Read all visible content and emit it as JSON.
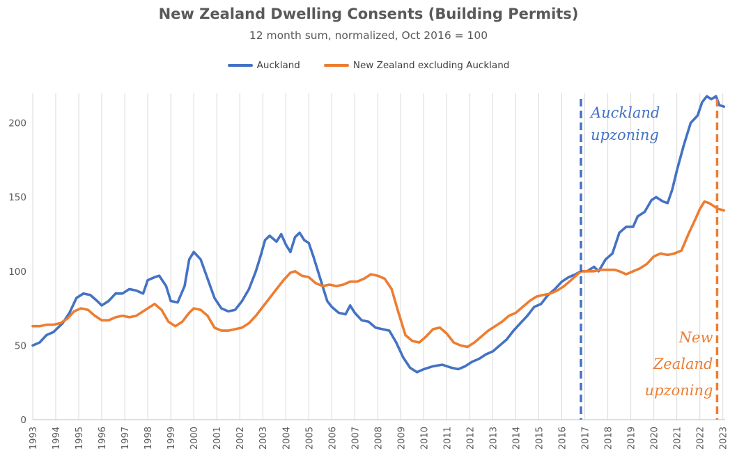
{
  "chart_data": {
    "type": "line",
    "title": "New Zealand Dwelling Consents (Building Permits)",
    "subtitle": "12 month sum, normalized, Oct 2016 = 100",
    "xlabel": "",
    "ylabel": "",
    "xlim": [
      1993,
      2023.1
    ],
    "ylim": [
      0,
      220
    ],
    "y_ticks": [
      0,
      50,
      100,
      150,
      200
    ],
    "x_ticks": [
      "1993",
      "1994",
      "1995",
      "1996",
      "1997",
      "1998",
      "1999",
      "2000",
      "2001",
      "2002",
      "2003",
      "2004",
      "2005",
      "2006",
      "2007",
      "2008",
      "2009",
      "2010",
      "2011",
      "2012",
      "2013",
      "2014",
      "2015",
      "2016",
      "2017",
      "2018",
      "2019",
      "2020",
      "2021",
      "2022",
      "2023"
    ],
    "grid": "vertical gridlines at each year",
    "legend_position": "top-center",
    "series": [
      {
        "name": "Auckland",
        "color": "#4472C4",
        "points": [
          [
            1993.0,
            50
          ],
          [
            1993.3,
            52
          ],
          [
            1993.6,
            57
          ],
          [
            1993.9,
            59
          ],
          [
            1994.3,
            65
          ],
          [
            1994.6,
            72
          ],
          [
            1994.9,
            82
          ],
          [
            1995.2,
            85
          ],
          [
            1995.5,
            84
          ],
          [
            1995.8,
            80
          ],
          [
            1996.0,
            77
          ],
          [
            1996.3,
            80
          ],
          [
            1996.6,
            85
          ],
          [
            1996.9,
            85
          ],
          [
            1997.2,
            88
          ],
          [
            1997.5,
            87
          ],
          [
            1997.8,
            85
          ],
          [
            1998.0,
            94
          ],
          [
            1998.3,
            96
          ],
          [
            1998.5,
            97
          ],
          [
            1998.8,
            90
          ],
          [
            1999.0,
            80
          ],
          [
            1999.3,
            79
          ],
          [
            1999.6,
            90
          ],
          [
            1999.8,
            108
          ],
          [
            2000.0,
            113
          ],
          [
            2000.3,
            108
          ],
          [
            2000.6,
            95
          ],
          [
            2000.9,
            82
          ],
          [
            2001.2,
            75
          ],
          [
            2001.5,
            73
          ],
          [
            2001.8,
            74
          ],
          [
            2002.1,
            80
          ],
          [
            2002.4,
            88
          ],
          [
            2002.7,
            100
          ],
          [
            2002.9,
            110
          ],
          [
            2003.1,
            121
          ],
          [
            2003.3,
            124
          ],
          [
            2003.6,
            120
          ],
          [
            2003.8,
            125
          ],
          [
            2004.0,
            118
          ],
          [
            2004.2,
            113
          ],
          [
            2004.4,
            123
          ],
          [
            2004.6,
            126
          ],
          [
            2004.8,
            121
          ],
          [
            2005.0,
            119
          ],
          [
            2005.2,
            110
          ],
          [
            2005.4,
            100
          ],
          [
            2005.6,
            90
          ],
          [
            2005.8,
            80
          ],
          [
            2006.0,
            76
          ],
          [
            2006.3,
            72
          ],
          [
            2006.6,
            71
          ],
          [
            2006.8,
            77
          ],
          [
            2007.0,
            72
          ],
          [
            2007.3,
            67
          ],
          [
            2007.6,
            66
          ],
          [
            2007.9,
            62
          ],
          [
            2008.2,
            61
          ],
          [
            2008.5,
            60
          ],
          [
            2008.8,
            52
          ],
          [
            2009.1,
            42
          ],
          [
            2009.4,
            35
          ],
          [
            2009.7,
            32
          ],
          [
            2010.0,
            34
          ],
          [
            2010.4,
            36
          ],
          [
            2010.8,
            37
          ],
          [
            2011.2,
            35
          ],
          [
            2011.5,
            34
          ],
          [
            2011.8,
            36
          ],
          [
            2012.1,
            39
          ],
          [
            2012.4,
            41
          ],
          [
            2012.7,
            44
          ],
          [
            2013.0,
            46
          ],
          [
            2013.3,
            50
          ],
          [
            2013.6,
            54
          ],
          [
            2013.9,
            60
          ],
          [
            2014.2,
            65
          ],
          [
            2014.5,
            70
          ],
          [
            2014.8,
            76
          ],
          [
            2015.1,
            78
          ],
          [
            2015.4,
            84
          ],
          [
            2015.7,
            88
          ],
          [
            2016.0,
            93
          ],
          [
            2016.3,
            96
          ],
          [
            2016.6,
            98
          ],
          [
            2016.83,
            100
          ],
          [
            2017.1,
            100
          ],
          [
            2017.4,
            103
          ],
          [
            2017.6,
            100
          ],
          [
            2017.9,
            108
          ],
          [
            2018.2,
            112
          ],
          [
            2018.5,
            126
          ],
          [
            2018.8,
            130
          ],
          [
            2019.1,
            130
          ],
          [
            2019.3,
            137
          ],
          [
            2019.6,
            140
          ],
          [
            2019.9,
            148
          ],
          [
            2020.1,
            150
          ],
          [
            2020.4,
            147
          ],
          [
            2020.6,
            146
          ],
          [
            2020.8,
            155
          ],
          [
            2021.0,
            168
          ],
          [
            2021.3,
            185
          ],
          [
            2021.6,
            200
          ],
          [
            2021.9,
            205
          ],
          [
            2022.1,
            214
          ],
          [
            2022.3,
            218
          ],
          [
            2022.5,
            216
          ],
          [
            2022.7,
            218
          ],
          [
            2022.85,
            212
          ],
          [
            2023.05,
            211
          ]
        ]
      },
      {
        "name": "New Zealand excluding Auckland",
        "color": "#ED7D31",
        "points": [
          [
            1993.0,
            63
          ],
          [
            1993.3,
            63
          ],
          [
            1993.6,
            64
          ],
          [
            1993.9,
            64
          ],
          [
            1994.2,
            65
          ],
          [
            1994.5,
            68
          ],
          [
            1994.8,
            73
          ],
          [
            1995.1,
            75
          ],
          [
            1995.4,
            74
          ],
          [
            1995.7,
            70
          ],
          [
            1996.0,
            67
          ],
          [
            1996.3,
            67
          ],
          [
            1996.6,
            69
          ],
          [
            1996.9,
            70
          ],
          [
            1997.2,
            69
          ],
          [
            1997.5,
            70
          ],
          [
            1997.8,
            73
          ],
          [
            1998.1,
            76
          ],
          [
            1998.3,
            78
          ],
          [
            1998.6,
            74
          ],
          [
            1998.9,
            66
          ],
          [
            1999.2,
            63
          ],
          [
            1999.5,
            66
          ],
          [
            1999.8,
            72
          ],
          [
            2000.0,
            75
          ],
          [
            2000.3,
            74
          ],
          [
            2000.6,
            70
          ],
          [
            2000.9,
            62
          ],
          [
            2001.2,
            60
          ],
          [
            2001.5,
            60
          ],
          [
            2001.8,
            61
          ],
          [
            2002.1,
            62
          ],
          [
            2002.4,
            65
          ],
          [
            2002.7,
            70
          ],
          [
            2003.0,
            76
          ],
          [
            2003.3,
            82
          ],
          [
            2003.6,
            88
          ],
          [
            2003.9,
            94
          ],
          [
            2004.2,
            99
          ],
          [
            2004.4,
            100
          ],
          [
            2004.7,
            97
          ],
          [
            2005.0,
            96
          ],
          [
            2005.3,
            92
          ],
          [
            2005.6,
            90
          ],
          [
            2005.9,
            91
          ],
          [
            2006.2,
            90
          ],
          [
            2006.5,
            91
          ],
          [
            2006.8,
            93
          ],
          [
            2007.1,
            93
          ],
          [
            2007.4,
            95
          ],
          [
            2007.7,
            98
          ],
          [
            2008.0,
            97
          ],
          [
            2008.3,
            95
          ],
          [
            2008.6,
            88
          ],
          [
            2008.9,
            72
          ],
          [
            2009.2,
            57
          ],
          [
            2009.5,
            53
          ],
          [
            2009.8,
            52
          ],
          [
            2010.1,
            56
          ],
          [
            2010.4,
            61
          ],
          [
            2010.7,
            62
          ],
          [
            2011.0,
            58
          ],
          [
            2011.3,
            52
          ],
          [
            2011.6,
            50
          ],
          [
            2011.9,
            49
          ],
          [
            2012.2,
            52
          ],
          [
            2012.5,
            56
          ],
          [
            2012.8,
            60
          ],
          [
            2013.1,
            63
          ],
          [
            2013.4,
            66
          ],
          [
            2013.7,
            70
          ],
          [
            2014.0,
            72
          ],
          [
            2014.3,
            76
          ],
          [
            2014.6,
            80
          ],
          [
            2014.9,
            83
          ],
          [
            2015.2,
            84
          ],
          [
            2015.5,
            85
          ],
          [
            2015.8,
            87
          ],
          [
            2016.1,
            90
          ],
          [
            2016.4,
            94
          ],
          [
            2016.83,
            100
          ],
          [
            2017.1,
            100
          ],
          [
            2017.4,
            100
          ],
          [
            2017.7,
            101
          ],
          [
            2018.0,
            101
          ],
          [
            2018.3,
            101
          ],
          [
            2018.5,
            100
          ],
          [
            2018.8,
            98
          ],
          [
            2019.1,
            100
          ],
          [
            2019.4,
            102
          ],
          [
            2019.7,
            105
          ],
          [
            2020.0,
            110
          ],
          [
            2020.3,
            112
          ],
          [
            2020.6,
            111
          ],
          [
            2020.9,
            112
          ],
          [
            2021.2,
            114
          ],
          [
            2021.5,
            125
          ],
          [
            2021.8,
            135
          ],
          [
            2022.0,
            142
          ],
          [
            2022.2,
            147
          ],
          [
            2022.4,
            146
          ],
          [
            2022.6,
            144
          ],
          [
            2022.8,
            142
          ],
          [
            2023.05,
            141
          ]
        ]
      }
    ],
    "annotations": [
      {
        "id": "auckland",
        "x": 2016.83,
        "lines": [
          "Auckland",
          "upzoning"
        ],
        "color": "#4472C4"
      },
      {
        "id": "newzealand",
        "x": 2022.75,
        "lines": [
          "New",
          "Zealand",
          "upzoning"
        ],
        "color": "#ED7D31"
      }
    ]
  }
}
